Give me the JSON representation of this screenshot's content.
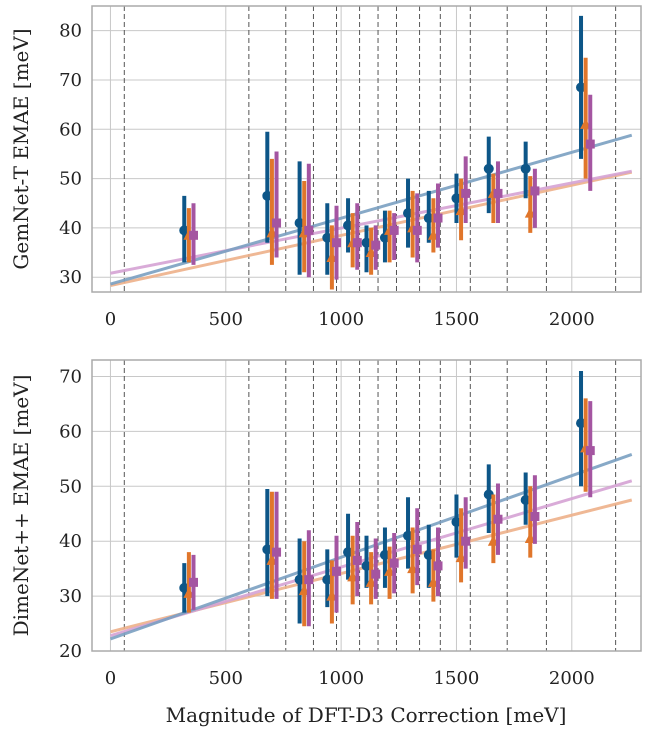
{
  "figure": {
    "xlabel": "Magnitude of DFT-D3 Correction [meV]"
  },
  "colors": {
    "blue": "#0d5688",
    "orange": "#e0762b",
    "purple": "#a455a1",
    "fit_blue": "#7ba0c2",
    "fit_orange": "#eeb18a",
    "fit_purple": "#d5a3d4",
    "grid": "#c8c8c8",
    "divider": "#555555",
    "frame": "#aaaaaa"
  },
  "chart_data": [
    {
      "type": "scatter",
      "title": "",
      "xlabel": "",
      "ylabel": "GemNet-T EMAE [meV]",
      "xlim": [
        -80,
        2300
      ],
      "ylim": [
        27,
        85
      ],
      "xticks": [
        0,
        500,
        1000,
        1500,
        2000
      ],
      "yticks": [
        30,
        40,
        50,
        60,
        70,
        80
      ],
      "bin_edges": [
        60,
        600,
        760,
        880,
        980,
        1080,
        1160,
        1240,
        1340,
        1430,
        1560,
        1720,
        1890,
        2190
      ],
      "grid": true,
      "series": [
        {
          "marker": "circle",
          "color_key": "blue",
          "points": [
            {
              "x": 320,
              "y": 39.5,
              "lo": 33,
              "hi": 46.5
            },
            {
              "x": 680,
              "y": 46.5,
              "lo": 37,
              "hi": 59.5
            },
            {
              "x": 820,
              "y": 41,
              "lo": 30.5,
              "hi": 53.5
            },
            {
              "x": 940,
              "y": 38,
              "lo": 30.5,
              "hi": 45
            },
            {
              "x": 1030,
              "y": 40.5,
              "lo": 35,
              "hi": 46
            },
            {
              "x": 1110,
              "y": 37,
              "lo": 31,
              "hi": 40.5
            },
            {
              "x": 1190,
              "y": 38,
              "lo": 33,
              "hi": 43.5
            },
            {
              "x": 1290,
              "y": 43,
              "lo": 36,
              "hi": 50
            },
            {
              "x": 1380,
              "y": 42,
              "lo": 37,
              "hi": 47.5
            },
            {
              "x": 1500,
              "y": 46,
              "lo": 41,
              "hi": 51
            },
            {
              "x": 1640,
              "y": 52,
              "lo": 43,
              "hi": 58.5
            },
            {
              "x": 1800,
              "y": 52,
              "lo": 46,
              "hi": 57.5
            },
            {
              "x": 2040,
              "y": 68.5,
              "lo": 54,
              "hi": 83
            }
          ]
        },
        {
          "marker": "triangle",
          "color_key": "orange",
          "points": [
            {
              "x": 340,
              "y": 38.5,
              "lo": 33,
              "hi": 44
            },
            {
              "x": 700,
              "y": 39,
              "lo": 32.5,
              "hi": 54
            },
            {
              "x": 840,
              "y": 39,
              "lo": 31,
              "hi": 49.5
            },
            {
              "x": 960,
              "y": 34,
              "lo": 27.5,
              "hi": 40.5
            },
            {
              "x": 1050,
              "y": 37,
              "lo": 32,
              "hi": 43
            },
            {
              "x": 1130,
              "y": 35,
              "lo": 30.5,
              "hi": 40
            },
            {
              "x": 1210,
              "y": 39.5,
              "lo": 33,
              "hi": 43.5
            },
            {
              "x": 1310,
              "y": 40,
              "lo": 34,
              "hi": 47.5
            },
            {
              "x": 1400,
              "y": 38.5,
              "lo": 35,
              "hi": 46
            },
            {
              "x": 1520,
              "y": 43.5,
              "lo": 37.5,
              "hi": 50
            },
            {
              "x": 1660,
              "y": 47,
              "lo": 41,
              "hi": 51
            },
            {
              "x": 1820,
              "y": 43,
              "lo": 39,
              "hi": 50.5
            },
            {
              "x": 2060,
              "y": 61,
              "lo": 50,
              "hi": 74.5
            }
          ]
        },
        {
          "marker": "square",
          "color_key": "purple",
          "points": [
            {
              "x": 360,
              "y": 38.5,
              "lo": 32.5,
              "hi": 45
            },
            {
              "x": 720,
              "y": 41,
              "lo": 34,
              "hi": 55.5
            },
            {
              "x": 860,
              "y": 39.5,
              "lo": 30,
              "hi": 53
            },
            {
              "x": 980,
              "y": 37,
              "lo": 29.5,
              "hi": 44.5
            },
            {
              "x": 1070,
              "y": 37,
              "lo": 31.5,
              "hi": 45
            },
            {
              "x": 1150,
              "y": 36.5,
              "lo": 31.5,
              "hi": 40.5
            },
            {
              "x": 1230,
              "y": 39.5,
              "lo": 33.5,
              "hi": 43
            },
            {
              "x": 1330,
              "y": 39.5,
              "lo": 33,
              "hi": 47
            },
            {
              "x": 1420,
              "y": 42,
              "lo": 36,
              "hi": 49
            },
            {
              "x": 1540,
              "y": 47,
              "lo": 41,
              "hi": 54.5
            },
            {
              "x": 1680,
              "y": 47,
              "lo": 41,
              "hi": 53.5
            },
            {
              "x": 1840,
              "y": 47.5,
              "lo": 40,
              "hi": 52
            },
            {
              "x": 2080,
              "y": 57,
              "lo": 47.5,
              "hi": 67
            }
          ]
        }
      ],
      "fits": [
        {
          "color_key": "fit_orange",
          "x": [
            0,
            2260
          ],
          "y": [
            28.3,
            51.3
          ]
        },
        {
          "color_key": "fit_purple",
          "x": [
            0,
            2260
          ],
          "y": [
            30.8,
            51.5
          ]
        },
        {
          "color_key": "fit_blue",
          "x": [
            0,
            2260
          ],
          "y": [
            28.6,
            58.8
          ]
        }
      ]
    },
    {
      "type": "scatter",
      "title": "",
      "xlabel": "Magnitude of DFT-D3 Correction [meV]",
      "ylabel": "DimeNet++ EMAE [meV]",
      "xlim": [
        -80,
        2300
      ],
      "ylim": [
        20,
        73
      ],
      "xticks": [
        0,
        500,
        1000,
        1500,
        2000
      ],
      "yticks": [
        20,
        30,
        40,
        50,
        60,
        70
      ],
      "bin_edges": [
        60,
        600,
        760,
        880,
        980,
        1080,
        1160,
        1240,
        1340,
        1430,
        1560,
        1720,
        1890,
        2190
      ],
      "grid": true,
      "series": [
        {
          "marker": "circle",
          "color_key": "blue",
          "points": [
            {
              "x": 320,
              "y": 31.5,
              "lo": 27,
              "hi": 36
            },
            {
              "x": 680,
              "y": 38.5,
              "lo": 30,
              "hi": 49.5
            },
            {
              "x": 820,
              "y": 33,
              "lo": 25,
              "hi": 40.5
            },
            {
              "x": 940,
              "y": 33,
              "lo": 28,
              "hi": 38.5
            },
            {
              "x": 1030,
              "y": 38,
              "lo": 33,
              "hi": 45
            },
            {
              "x": 1110,
              "y": 35.5,
              "lo": 31.5,
              "hi": 41
            },
            {
              "x": 1190,
              "y": 37.5,
              "lo": 31.5,
              "hi": 42.5
            },
            {
              "x": 1290,
              "y": 41,
              "lo": 35,
              "hi": 48
            },
            {
              "x": 1380,
              "y": 37.5,
              "lo": 31.5,
              "hi": 43
            },
            {
              "x": 1500,
              "y": 43.5,
              "lo": 37,
              "hi": 48.5
            },
            {
              "x": 1640,
              "y": 48.5,
              "lo": 41.5,
              "hi": 54
            },
            {
              "x": 1800,
              "y": 47.5,
              "lo": 43,
              "hi": 52.5
            },
            {
              "x": 2040,
              "y": 61.5,
              "lo": 50,
              "hi": 71
            }
          ]
        },
        {
          "marker": "triangle",
          "color_key": "orange",
          "points": [
            {
              "x": 340,
              "y": 30.5,
              "lo": 27,
              "hi": 38
            },
            {
              "x": 700,
              "y": 36.5,
              "lo": 29.5,
              "hi": 49
            },
            {
              "x": 840,
              "y": 31,
              "lo": 24.5,
              "hi": 40
            },
            {
              "x": 960,
              "y": 30,
              "lo": 25,
              "hi": 36.5
            },
            {
              "x": 1050,
              "y": 33.5,
              "lo": 28.5,
              "hi": 41
            },
            {
              "x": 1130,
              "y": 32.5,
              "lo": 28.5,
              "hi": 38
            },
            {
              "x": 1210,
              "y": 34.5,
              "lo": 29.5,
              "hi": 39
            },
            {
              "x": 1310,
              "y": 35,
              "lo": 30.5,
              "hi": 42.5
            },
            {
              "x": 1400,
              "y": 32.5,
              "lo": 29,
              "hi": 38.5
            },
            {
              "x": 1520,
              "y": 37,
              "lo": 32.5,
              "hi": 46
            },
            {
              "x": 1660,
              "y": 40,
              "lo": 36,
              "hi": 48.5
            },
            {
              "x": 1820,
              "y": 40.5,
              "lo": 37,
              "hi": 50
            },
            {
              "x": 2060,
              "y": 57,
              "lo": 49,
              "hi": 66
            }
          ]
        },
        {
          "marker": "square",
          "color_key": "purple",
          "points": [
            {
              "x": 360,
              "y": 32.5,
              "lo": 27.5,
              "hi": 37.5
            },
            {
              "x": 720,
              "y": 38,
              "lo": 29.5,
              "hi": 49
            },
            {
              "x": 860,
              "y": 33,
              "lo": 24.5,
              "hi": 42
            },
            {
              "x": 980,
              "y": 34.5,
              "lo": 27,
              "hi": 41
            },
            {
              "x": 1070,
              "y": 36.5,
              "lo": 30,
              "hi": 43.5
            },
            {
              "x": 1150,
              "y": 34,
              "lo": 29.5,
              "hi": 40.5
            },
            {
              "x": 1230,
              "y": 36,
              "lo": 30.5,
              "hi": 41.5
            },
            {
              "x": 1330,
              "y": 38.5,
              "lo": 32,
              "hi": 46
            },
            {
              "x": 1420,
              "y": 35.5,
              "lo": 30,
              "hi": 42.5
            },
            {
              "x": 1540,
              "y": 40,
              "lo": 35,
              "hi": 48
            },
            {
              "x": 1680,
              "y": 44,
              "lo": 37.5,
              "hi": 50.5
            },
            {
              "x": 1840,
              "y": 44.5,
              "lo": 39.5,
              "hi": 52
            },
            {
              "x": 2080,
              "y": 56.5,
              "lo": 48,
              "hi": 65.5
            }
          ]
        }
      ],
      "fits": [
        {
          "color_key": "fit_orange",
          "x": [
            0,
            2260
          ],
          "y": [
            23.5,
            47.5
          ]
        },
        {
          "color_key": "fit_purple",
          "x": [
            0,
            2260
          ],
          "y": [
            22.8,
            51
          ]
        },
        {
          "color_key": "fit_blue",
          "x": [
            0,
            2260
          ],
          "y": [
            22.2,
            55.8
          ]
        }
      ]
    }
  ]
}
